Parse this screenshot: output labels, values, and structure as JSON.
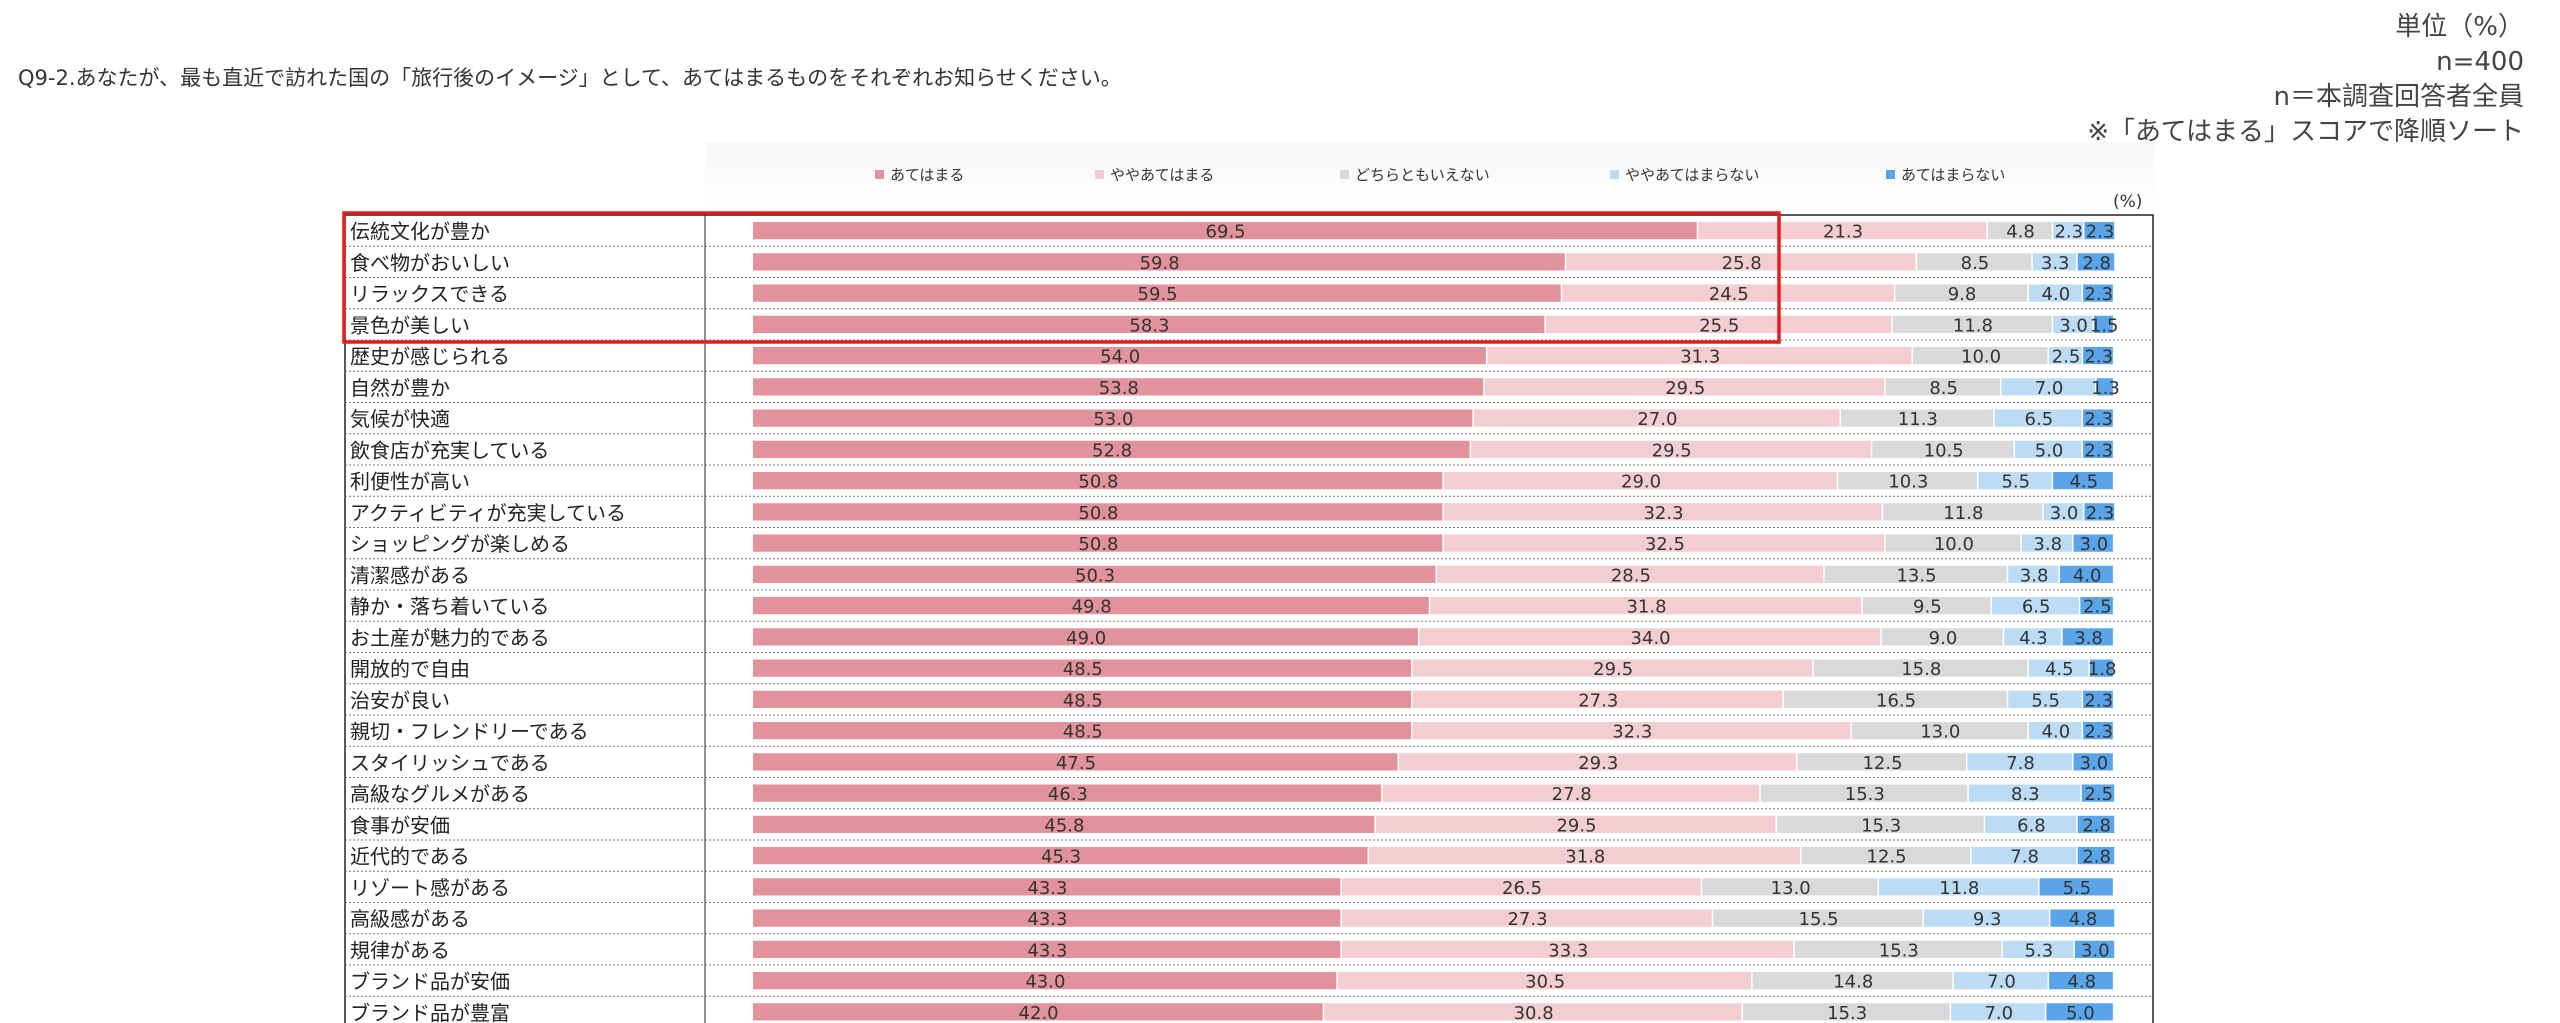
{
  "question": "Q9-2.あなたが、最も直近で訪れた国の「旅行後のイメージ」として、あてはまるものをそれぞれお知らせください。",
  "meta": [
    "単位（%）",
    "n=400",
    "n＝本調査回答者全員",
    "※「あてはまる」スコアで降順ソート"
  ],
  "unit_label": "(%)",
  "colors": {
    "s0": "#e2929a",
    "s1": "#f4cdd2",
    "s2": "#d9d9d9",
    "s3": "#bcdcf6",
    "s4": "#5aa4ea",
    "highlight": "#e02020"
  },
  "chart_data": {
    "type": "bar",
    "orientation": "horizontal",
    "stacked": true,
    "xlim": [
      0,
      100
    ],
    "legend_position": "top",
    "highlighted_categories": [
      "伝統文化が豊か",
      "食べ物がおいしい",
      "リラックスできる",
      "景色が美しい"
    ],
    "categories": [
      "伝統文化が豊か",
      "食べ物がおいしい",
      "リラックスできる",
      "景色が美しい",
      "歴史が感じられる",
      "自然が豊か",
      "気候が快適",
      "飲食店が充実している",
      "利便性が高い",
      "アクティビティが充実している",
      "ショッピングが楽しめる",
      "清潔感がある",
      "静か・落ち着いている",
      "お土産が魅力的である",
      "開放的で自由",
      "治安が良い",
      "親切・フレンドリーである",
      "スタイリッシュである",
      "高級なグルメがある",
      "食事が安価",
      "近代的である",
      "リゾート感がある",
      "高級感がある",
      "規律がある",
      "ブランド品が安価",
      "ブランド品が豊富"
    ],
    "series": [
      {
        "name": "あてはまる",
        "values": [
          69.5,
          59.8,
          59.5,
          58.3,
          54.0,
          53.8,
          53.0,
          52.8,
          50.8,
          50.8,
          50.8,
          50.3,
          49.8,
          49.0,
          48.5,
          48.5,
          48.5,
          47.5,
          46.3,
          45.8,
          45.3,
          43.3,
          43.3,
          43.3,
          43.0,
          42.0
        ]
      },
      {
        "name": "ややあてはまる",
        "values": [
          21.3,
          25.8,
          24.5,
          25.5,
          31.3,
          29.5,
          27.0,
          29.5,
          29.0,
          32.3,
          32.5,
          28.5,
          31.8,
          34.0,
          29.5,
          27.3,
          32.3,
          29.3,
          27.8,
          29.5,
          31.8,
          26.5,
          27.3,
          33.3,
          30.5,
          30.8
        ]
      },
      {
        "name": "どちらともいえない",
        "values": [
          4.8,
          8.5,
          9.8,
          11.8,
          10.0,
          8.5,
          11.3,
          10.5,
          10.3,
          11.8,
          10.0,
          13.5,
          9.5,
          9.0,
          15.8,
          16.5,
          13.0,
          12.5,
          15.3,
          15.3,
          12.5,
          13.0,
          15.5,
          15.3,
          14.8,
          15.3
        ]
      },
      {
        "name": "ややあてはまらない",
        "values": [
          2.3,
          3.3,
          4.0,
          3.0,
          2.5,
          7.0,
          6.5,
          5.0,
          5.5,
          3.0,
          3.8,
          3.8,
          6.5,
          4.3,
          4.5,
          5.5,
          4.0,
          7.8,
          8.3,
          6.8,
          7.8,
          11.8,
          9.3,
          5.3,
          7.0,
          7.0
        ]
      },
      {
        "name": "あてはまらない",
        "values": [
          2.3,
          2.8,
          2.3,
          1.5,
          2.3,
          1.3,
          2.3,
          2.3,
          4.5,
          2.3,
          3.0,
          4.0,
          2.5,
          3.8,
          1.8,
          2.3,
          2.3,
          3.0,
          2.5,
          2.8,
          2.8,
          5.5,
          4.8,
          3.0,
          4.8,
          5.0
        ]
      }
    ]
  }
}
